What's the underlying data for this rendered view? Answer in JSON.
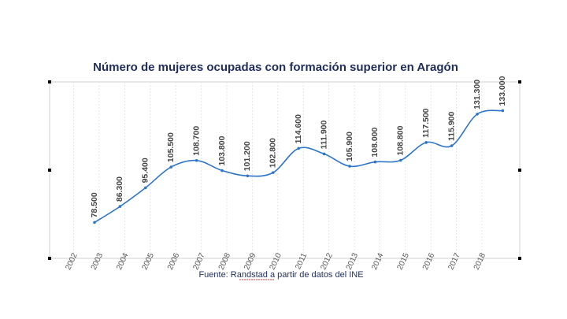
{
  "chart_data": {
    "type": "line",
    "title": "Número de mujeres ocupadas con formación superior en Aragón",
    "categories": [
      "2002",
      "2003",
      "2004",
      "2005",
      "2006",
      "2007",
      "2008",
      "2009",
      "2010",
      "2011",
      "2012",
      "2013",
      "2014",
      "2015",
      "2016",
      "2017",
      "2018"
    ],
    "values": [
      78.5,
      86.3,
      95.4,
      105.5,
      108.7,
      103.8,
      101.2,
      102.8,
      114.6,
      111.9,
      105.9,
      108.0,
      108.8,
      117.5,
      115.9,
      131.3,
      133.0
    ],
    "value_labels": [
      "78.500",
      "86.300",
      "95.400",
      "105.500",
      "108.700",
      "103.800",
      "101.200",
      "102.800",
      "114.600",
      "111.900",
      "105.900",
      "108.000",
      "108.800",
      "117.500",
      "115.900",
      "131.300",
      "133.000"
    ],
    "color": "#2e75c8",
    "ylim": [
      61,
      147
    ],
    "source": "Fuente: Randstad a partir de datos del INE"
  }
}
